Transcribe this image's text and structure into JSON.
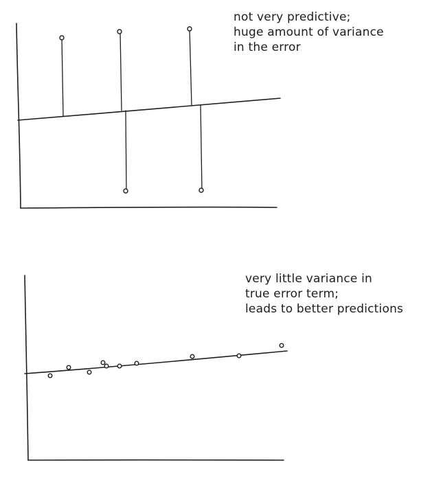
{
  "top_panel": {
    "note_lines": [
      "not very predictive;",
      "huge amount of variance",
      "in the error"
    ]
  },
  "bottom_panel": {
    "note_lines": [
      "very little variance in",
      "true error term;",
      "leads to better predictions"
    ]
  }
}
